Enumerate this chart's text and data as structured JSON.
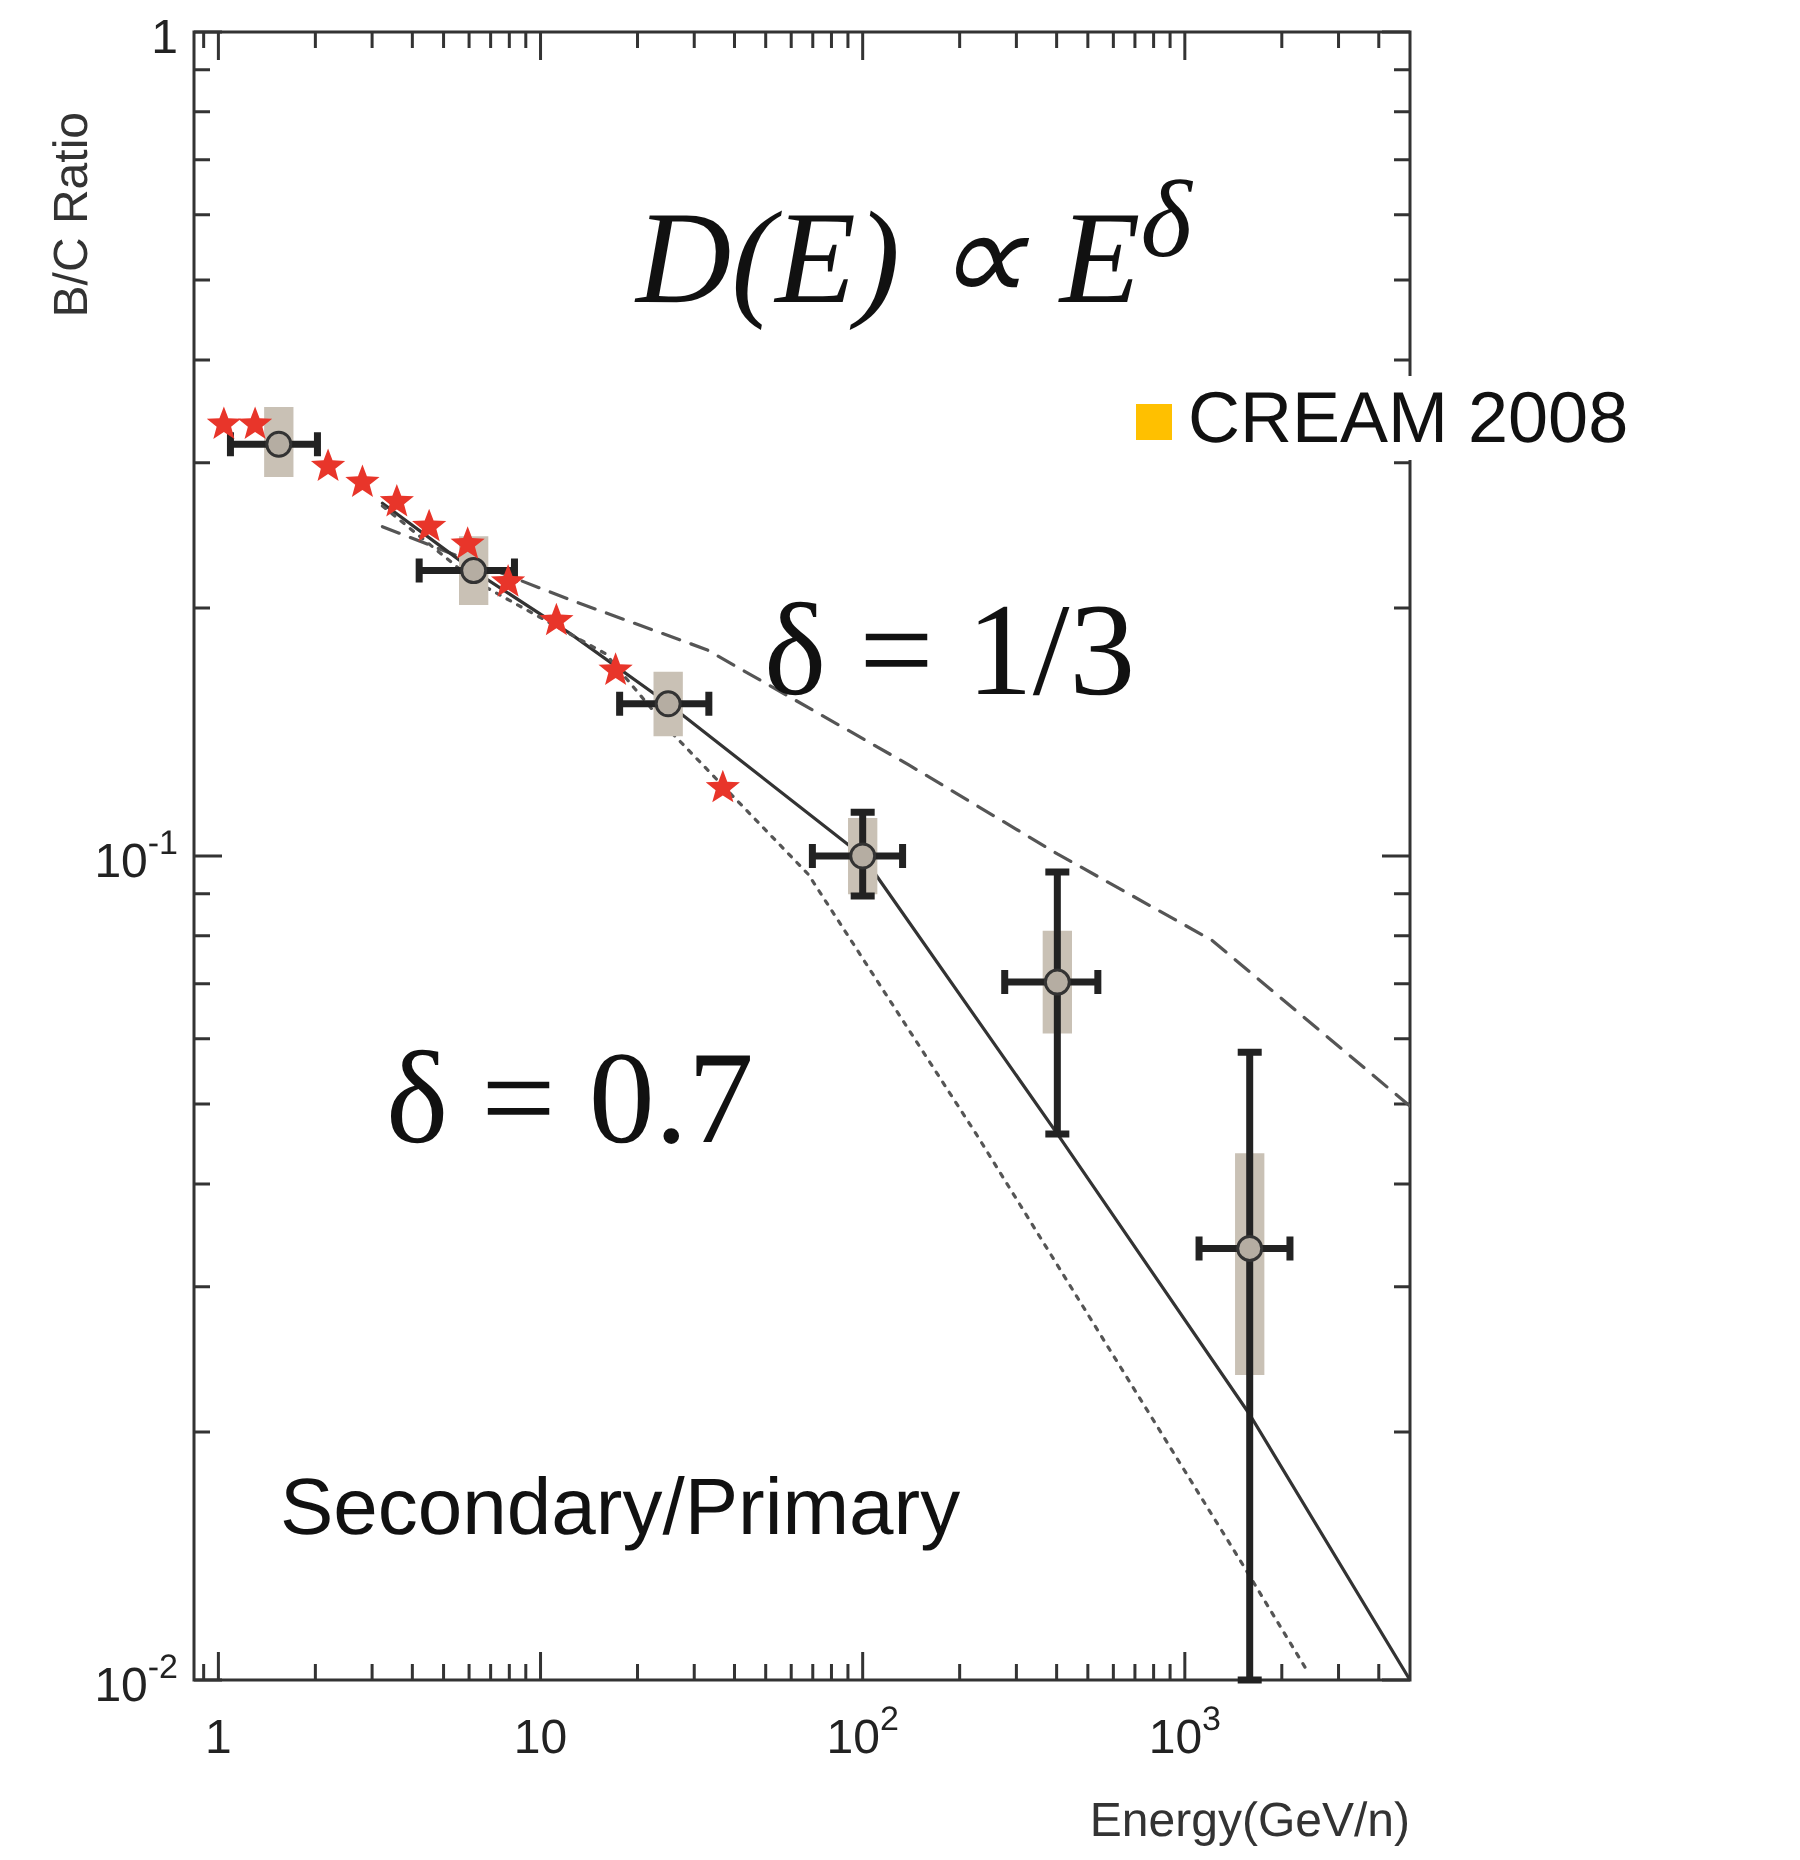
{
  "chart_data": {
    "type": "scatter",
    "xlabel": "Energy(GeV/n)",
    "ylabel": "B/C Ratio",
    "log": "xy",
    "xlim": [
      0.84,
      5000
    ],
    "ylim": [
      0.01,
      1
    ],
    "xticks": [
      {
        "value": 0.9,
        "label": null
      },
      1,
      {
        "value": 2,
        "label": null
      },
      {
        "value": 3,
        "label": null
      },
      {
        "value": 4,
        "label": null
      },
      {
        "value": 5,
        "label": null
      },
      {
        "value": 6,
        "label": null
      },
      {
        "value": 7,
        "label": null
      },
      {
        "value": 8,
        "label": null
      },
      {
        "value": 9,
        "label": null
      },
      10,
      {
        "value": 20,
        "label": null
      },
      {
        "value": 30,
        "label": null
      },
      {
        "value": 40,
        "label": null
      },
      {
        "value": 50,
        "label": null
      },
      {
        "value": 60,
        "label": null
      },
      {
        "value": 70,
        "label": null
      },
      {
        "value": 80,
        "label": null
      },
      {
        "value": 90,
        "label": null
      },
      {
        "value": 100,
        "label": "10$^{2}$"
      },
      {
        "value": 200,
        "label": null
      },
      {
        "value": 300,
        "label": null
      },
      {
        "value": 400,
        "label": null
      },
      {
        "value": 500,
        "label": null
      },
      {
        "value": 600,
        "label": null
      },
      {
        "value": 700,
        "label": null
      },
      {
        "value": 800,
        "label": null
      },
      {
        "value": 900,
        "label": null
      },
      {
        "value": 1000,
        "label": "10$^{3}$"
      },
      {
        "value": 2000,
        "label": null
      },
      {
        "value": 3000,
        "label": null
      },
      {
        "value": 4000,
        "label": null
      }
    ],
    "yticks": [
      {
        "value": 0.01,
        "label": "10$^{-2}$"
      },
      {
        "value": 0.02,
        "label": null
      },
      {
        "value": 0.03,
        "label": null
      },
      {
        "value": 0.04,
        "label": null
      },
      {
        "value": 0.05,
        "label": null
      },
      {
        "value": 0.06,
        "label": null
      },
      {
        "value": 0.07,
        "label": null
      },
      {
        "value": 0.08,
        "label": null
      },
      {
        "value": 0.09,
        "label": null
      },
      {
        "value": 0.1,
        "label": "10$^{-1}$"
      },
      {
        "value": 0.2,
        "label": null
      },
      {
        "value": 0.3,
        "label": null
      },
      {
        "value": 0.4,
        "label": null
      },
      {
        "value": 0.5,
        "label": null
      },
      {
        "value": 0.6,
        "label": null
      },
      {
        "value": 0.7,
        "label": null
      },
      {
        "value": 0.8,
        "label": null
      },
      {
        "value": 0.9,
        "label": null
      },
      1
    ],
    "grid": false,
    "legend": false,
    "annotations": [
      "D(E) ∝ E$^{δ}$",
      "δ = 1/3",
      "δ = 0.7",
      "Secondary/Primary",
      "CREAM 2008"
    ],
    "series": [
      {
        "type": "line",
        "line_style": "dashed",
        "marker": "none",
        "color": "#555555",
        "x": [
          3.23,
          12.4,
          32.8,
          139,
          402,
          1215,
          5000
        ],
        "values": [
          0.251,
          0.2045,
          0.178,
          0.129,
          0.1006,
          0.079,
          0.0497
        ]
      },
      {
        "type": "line",
        "line_style": "solid",
        "marker": "none",
        "color": "#333333",
        "x": [
          3.23,
          6.2,
          12.4,
          24.9,
          100,
          402,
          1590,
          5000
        ],
        "values": [
          0.268,
          0.222,
          0.186,
          0.153,
          0.1,
          0.046,
          0.021,
          0.01
        ]
      },
      {
        "type": "line",
        "line_style": "dotted",
        "marker": "none",
        "color": "#555555",
        "x": [
          3.23,
          6.2,
          15.9,
          25.6,
          67.8,
          225,
          1480,
          2420
        ],
        "values": [
          0.266,
          0.216,
          0.176,
          0.141,
          0.095,
          0.046,
          0.014,
          0.0102
        ]
      },
      {
        "type": "bar",
        "color": "#c9c1b5",
        "x": [
          1.54,
          6.2,
          24.9,
          100,
          402,
          1590
        ],
        "base": [
          0.289,
          0.202,
          0.14,
          0.09,
          0.061,
          0.0235
        ],
        "values": [
          0.061,
          0.042,
          0.027,
          0.021,
          0.02,
          0.02
        ]
      },
      {
        "marker": "star",
        "color": "#e8352a",
        "x": [
          1.04,
          1.3,
          2.19,
          2.8,
          3.58,
          4.51,
          5.94,
          7.93,
          11.2,
          17.1,
          36.8
        ],
        "values": [
          0.334,
          0.334,
          0.297,
          0.284,
          0.269,
          0.251,
          0.239,
          0.215,
          0.193,
          0.168,
          0.121
        ]
      },
      {
        "marker": "circle",
        "color": "#b5ada2",
        "x": [
          1.54,
          6.2,
          24.9,
          100,
          402,
          1590
        ],
        "values": [
          0.316,
          0.222,
          0.153,
          0.1,
          0.0703,
          0.0334
        ],
        "errors": [
          null,
          null,
          null,
          [
            0.0894,
            0.113
          ],
          [
            0.046,
            0.0956
          ],
          [
            0.01,
            0.0578
          ]
        ],
        "xerrors": [
          [
            1.09,
            2.03
          ],
          [
            4.2,
            8.3
          ],
          [
            17.6,
            33.3
          ],
          [
            69.8,
            133
          ],
          [
            276,
            537
          ],
          [
            1107,
            2120
          ]
        ]
      }
    ]
  }
}
